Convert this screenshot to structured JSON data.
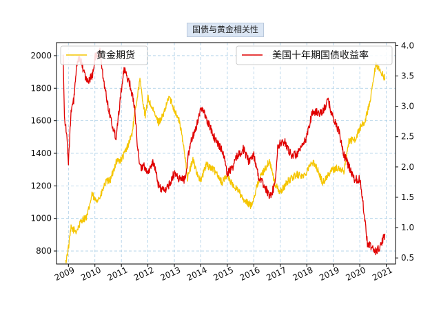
{
  "chart_data": {
    "type": "line",
    "title": "国债与黄金相关性",
    "x_ticks": [
      "2009",
      "2010",
      "2011",
      "2012",
      "2013",
      "2014",
      "2015",
      "2016",
      "2017",
      "2018",
      "2019",
      "2020",
      "2021"
    ],
    "y_left": {
      "range": [
        720,
        2080
      ],
      "ticks": [
        800,
        1000,
        1200,
        1400,
        1600,
        1800,
        2000
      ]
    },
    "y_right": {
      "range": [
        0.4,
        4.05
      ],
      "ticks": [
        0.5,
        1.0,
        1.5,
        2.0,
        2.5,
        3.0,
        3.5,
        4.0
      ]
    },
    "grid": true,
    "legend_left": {
      "placement": "top-left",
      "label": "黄金期货",
      "color": "#f5c500"
    },
    "legend_right": {
      "placement": "top-right",
      "label": "美国十年期国债收益率",
      "color": "#e00000"
    },
    "series": [
      {
        "name": "黄金期货",
        "axis": "left",
        "color": "#f5c500",
        "x": [
          2008.9,
          2009.0,
          2009.1,
          2009.3,
          2009.5,
          2009.7,
          2009.9,
          2010.0,
          2010.2,
          2010.4,
          2010.6,
          2010.8,
          2011.0,
          2011.2,
          2011.4,
          2011.6,
          2011.7,
          2011.9,
          2012.0,
          2012.2,
          2012.4,
          2012.6,
          2012.8,
          2013.0,
          2013.2,
          2013.4,
          2013.5,
          2013.7,
          2013.9,
          2014.0,
          2014.2,
          2014.4,
          2014.6,
          2014.8,
          2015.0,
          2015.2,
          2015.4,
          2015.6,
          2015.9,
          2016.0,
          2016.2,
          2016.4,
          2016.6,
          2016.8,
          2017.0,
          2017.3,
          2017.6,
          2017.9,
          2018.1,
          2018.3,
          2018.6,
          2018.9,
          2019.1,
          2019.4,
          2019.6,
          2019.8,
          2020.0,
          2020.2,
          2020.4,
          2020.6,
          2020.8,
          2020.95
        ],
        "values": [
          730,
          820,
          940,
          920,
          990,
          1010,
          1150,
          1110,
          1130,
          1220,
          1240,
          1350,
          1360,
          1430,
          1520,
          1750,
          1850,
          1620,
          1740,
          1660,
          1590,
          1640,
          1750,
          1670,
          1590,
          1390,
          1250,
          1360,
          1260,
          1230,
          1330,
          1310,
          1280,
          1220,
          1270,
          1200,
          1180,
          1110,
          1080,
          1130,
          1240,
          1300,
          1350,
          1210,
          1160,
          1230,
          1270,
          1260,
          1330,
          1340,
          1220,
          1290,
          1310,
          1290,
          1480,
          1480,
          1550,
          1600,
          1720,
          1940,
          1900,
          1860
        ]
      },
      {
        "name": "美国十年期国债收益率",
        "axis": "right",
        "color": "#e00000",
        "x": [
          2008.8,
          2008.85,
          2008.9,
          2009.0,
          2009.1,
          2009.2,
          2009.3,
          2009.4,
          2009.5,
          2009.7,
          2009.9,
          2010.0,
          2010.2,
          2010.3,
          2010.5,
          2010.7,
          2010.8,
          2011.0,
          2011.1,
          2011.3,
          2011.5,
          2011.6,
          2011.7,
          2011.9,
          2012.0,
          2012.2,
          2012.4,
          2012.6,
          2012.8,
          2013.0,
          2013.2,
          2013.4,
          2013.6,
          2013.8,
          2014.0,
          2014.2,
          2014.4,
          2014.6,
          2014.8,
          2015.0,
          2015.2,
          2015.4,
          2015.6,
          2015.8,
          2016.0,
          2016.2,
          2016.4,
          2016.6,
          2016.8,
          2016.9,
          2017.0,
          2017.2,
          2017.4,
          2017.6,
          2017.8,
          2018.0,
          2018.2,
          2018.4,
          2018.6,
          2018.8,
          2019.0,
          2019.2,
          2019.4,
          2019.6,
          2019.8,
          2020.0,
          2020.1,
          2020.2,
          2020.3,
          2020.4,
          2020.6,
          2020.8,
          2020.95
        ],
        "values": [
          3.9,
          2.8,
          2.7,
          2.1,
          2.9,
          3.1,
          3.6,
          3.8,
          3.7,
          3.4,
          3.5,
          3.8,
          3.9,
          3.5,
          3.0,
          2.6,
          2.5,
          3.3,
          3.6,
          3.4,
          3.0,
          2.4,
          2.0,
          2.0,
          1.9,
          2.1,
          1.7,
          1.6,
          1.7,
          1.9,
          1.8,
          1.8,
          2.4,
          2.6,
          3.0,
          2.8,
          2.6,
          2.4,
          2.3,
          1.9,
          2.0,
          2.2,
          2.3,
          2.1,
          2.2,
          1.8,
          1.7,
          1.5,
          1.7,
          2.3,
          2.4,
          2.4,
          2.2,
          2.2,
          2.3,
          2.5,
          2.9,
          2.9,
          2.9,
          3.1,
          2.8,
          2.6,
          2.2,
          2.0,
          1.8,
          1.8,
          1.5,
          1.1,
          0.7,
          0.7,
          0.6,
          0.7,
          0.9
        ]
      }
    ]
  }
}
